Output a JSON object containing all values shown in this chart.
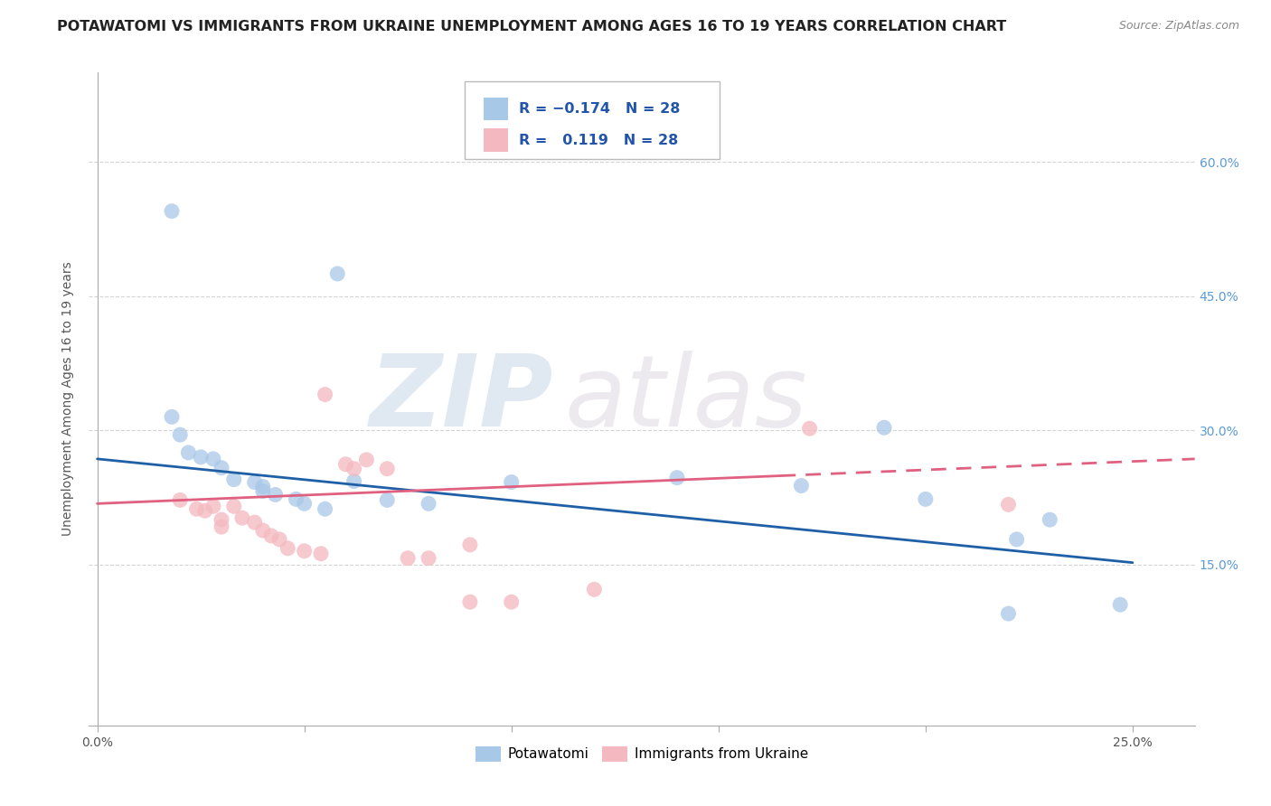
{
  "title": "POTAWATOMI VS IMMIGRANTS FROM UKRAINE UNEMPLOYMENT AMONG AGES 16 TO 19 YEARS CORRELATION CHART",
  "source": "Source: ZipAtlas.com",
  "ylabel_left": "Unemployment Among Ages 16 to 19 years",
  "y_ticks_right": [
    0.15,
    0.3,
    0.45,
    0.6
  ],
  "y_tick_labels_right": [
    "15.0%",
    "30.0%",
    "45.0%",
    "60.0%"
  ],
  "xlim": [
    -0.002,
    0.265
  ],
  "ylim": [
    -0.03,
    0.7
  ],
  "legend_labels": [
    "Potawatomi",
    "Immigrants from Ukraine"
  ],
  "blue_color": "#a8c8e8",
  "pink_color": "#f4b8c0",
  "blue_scatter": [
    [
      0.018,
      0.545
    ],
    [
      0.058,
      0.475
    ],
    [
      0.018,
      0.315
    ],
    [
      0.02,
      0.295
    ],
    [
      0.022,
      0.275
    ],
    [
      0.025,
      0.27
    ],
    [
      0.028,
      0.268
    ],
    [
      0.03,
      0.258
    ],
    [
      0.033,
      0.245
    ],
    [
      0.038,
      0.242
    ],
    [
      0.04,
      0.237
    ],
    [
      0.04,
      0.232
    ],
    [
      0.043,
      0.228
    ],
    [
      0.048,
      0.223
    ],
    [
      0.05,
      0.218
    ],
    [
      0.055,
      0.212
    ],
    [
      0.062,
      0.243
    ],
    [
      0.07,
      0.222
    ],
    [
      0.08,
      0.218
    ],
    [
      0.1,
      0.242
    ],
    [
      0.14,
      0.247
    ],
    [
      0.17,
      0.238
    ],
    [
      0.19,
      0.303
    ],
    [
      0.2,
      0.223
    ],
    [
      0.222,
      0.178
    ],
    [
      0.22,
      0.095
    ],
    [
      0.23,
      0.2
    ],
    [
      0.247,
      0.105
    ]
  ],
  "pink_scatter": [
    [
      0.02,
      0.222
    ],
    [
      0.024,
      0.212
    ],
    [
      0.026,
      0.21
    ],
    [
      0.028,
      0.215
    ],
    [
      0.03,
      0.2
    ],
    [
      0.03,
      0.192
    ],
    [
      0.033,
      0.215
    ],
    [
      0.035,
      0.202
    ],
    [
      0.038,
      0.197
    ],
    [
      0.04,
      0.188
    ],
    [
      0.042,
      0.182
    ],
    [
      0.044,
      0.178
    ],
    [
      0.046,
      0.168
    ],
    [
      0.05,
      0.165
    ],
    [
      0.054,
      0.162
    ],
    [
      0.055,
      0.34
    ],
    [
      0.06,
      0.262
    ],
    [
      0.062,
      0.257
    ],
    [
      0.065,
      0.267
    ],
    [
      0.07,
      0.257
    ],
    [
      0.075,
      0.157
    ],
    [
      0.08,
      0.157
    ],
    [
      0.09,
      0.172
    ],
    [
      0.09,
      0.108
    ],
    [
      0.1,
      0.108
    ],
    [
      0.12,
      0.122
    ],
    [
      0.172,
      0.302
    ],
    [
      0.22,
      0.217
    ]
  ],
  "blue_trend": [
    0.0,
    0.268,
    0.25,
    0.152
  ],
  "pink_trend": [
    0.0,
    0.218,
    0.265,
    0.268
  ],
  "pink_trend_dashed_start": 0.165,
  "background_color": "#ffffff",
  "grid_color": "#d0d0d0",
  "title_fontsize": 11.5,
  "axis_label_fontsize": 10,
  "tick_fontsize": 10,
  "right_tick_color": "#5b9bd5",
  "blue_line_color": "#1f5fa6",
  "pink_line_color": "#e06080"
}
